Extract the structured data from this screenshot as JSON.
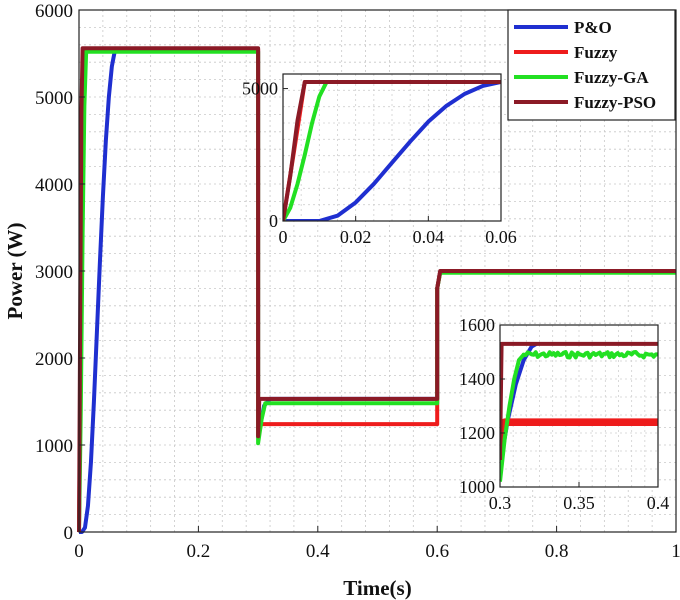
{
  "chart_data": {
    "type": "line",
    "xlabel": "Time(s)",
    "ylabel": "Power (W)",
    "xlim": [
      0,
      1
    ],
    "ylim": [
      0,
      6000
    ],
    "xticks": [
      0,
      0.2,
      0.4,
      0.6,
      0.8,
      1
    ],
    "xtick_labels": [
      "0",
      "0.2",
      "0.4",
      "0.6",
      "0.8",
      "1"
    ],
    "yticks": [
      0,
      1000,
      2000,
      3000,
      4000,
      5000,
      6000
    ],
    "ytick_labels": [
      "0",
      "1000",
      "2000",
      "3000",
      "4000",
      "5000",
      "6000"
    ],
    "grid": true,
    "legend_position": "top-right",
    "series": [
      {
        "name": "P&O",
        "color": "#1f2fd0",
        "points": [
          [
            0,
            0
          ],
          [
            0.005,
            0
          ],
          [
            0.01,
            50
          ],
          [
            0.015,
            300
          ],
          [
            0.02,
            800
          ],
          [
            0.025,
            1500
          ],
          [
            0.03,
            2300
          ],
          [
            0.035,
            3100
          ],
          [
            0.04,
            3850
          ],
          [
            0.045,
            4500
          ],
          [
            0.05,
            5000
          ],
          [
            0.055,
            5350
          ],
          [
            0.06,
            5530
          ],
          [
            0.3,
            5530
          ],
          [
            0.3,
            1100
          ],
          [
            0.31,
            1450
          ],
          [
            0.32,
            1530
          ],
          [
            0.6,
            1530
          ],
          [
            0.6,
            2800
          ],
          [
            0.605,
            2990
          ],
          [
            1,
            2990
          ]
        ]
      },
      {
        "name": "Fuzzy",
        "color": "#ee1c1c",
        "points": [
          [
            0,
            0
          ],
          [
            0.003,
            2200
          ],
          [
            0.006,
            4600
          ],
          [
            0.009,
            5550
          ],
          [
            0.3,
            5550
          ],
          [
            0.3,
            1100
          ],
          [
            0.305,
            1240
          ],
          [
            0.6,
            1240
          ],
          [
            0.6,
            2800
          ],
          [
            0.605,
            2990
          ],
          [
            1,
            2990
          ]
        ]
      },
      {
        "name": "Fuzzy-GA",
        "color": "#22e022",
        "points": [
          [
            0,
            0
          ],
          [
            0.003,
            1400
          ],
          [
            0.006,
            3400
          ],
          [
            0.009,
            4900
          ],
          [
            0.012,
            5520
          ],
          [
            0.3,
            5520
          ],
          [
            0.3,
            1020
          ],
          [
            0.306,
            1300
          ],
          [
            0.312,
            1480
          ],
          [
            0.6,
            1480
          ],
          [
            0.6,
            2800
          ],
          [
            0.605,
            2980
          ],
          [
            1,
            2980
          ]
        ]
      },
      {
        "name": "Fuzzy-PSO",
        "color": "#8b1a26",
        "points": [
          [
            0,
            0
          ],
          [
            0.002,
            2500
          ],
          [
            0.004,
            4800
          ],
          [
            0.006,
            5560
          ],
          [
            0.3,
            5560
          ],
          [
            0.3,
            1100
          ],
          [
            0.302,
            1530
          ],
          [
            0.6,
            1530
          ],
          [
            0.6,
            2800
          ],
          [
            0.605,
            3000
          ],
          [
            1,
            3000
          ]
        ]
      }
    ]
  },
  "inset_start": {
    "xlim": [
      0,
      0.06
    ],
    "ylim": [
      0,
      5550
    ],
    "xtick_labels": [
      "0",
      "0.02",
      "0.04",
      "0.06"
    ],
    "xticks": [
      0,
      0.02,
      0.04,
      0.06
    ],
    "ytick_labels": [
      "0",
      "5000"
    ],
    "yticks": [
      0,
      5000
    ],
    "series": [
      {
        "name": "P&O",
        "color": "#1f2fd0",
        "points": [
          [
            0,
            0
          ],
          [
            0.01,
            0
          ],
          [
            0.015,
            200
          ],
          [
            0.02,
            700
          ],
          [
            0.025,
            1400
          ],
          [
            0.03,
            2200
          ],
          [
            0.035,
            3000
          ],
          [
            0.04,
            3750
          ],
          [
            0.045,
            4350
          ],
          [
            0.05,
            4800
          ],
          [
            0.055,
            5100
          ],
          [
            0.06,
            5250
          ]
        ]
      },
      {
        "name": "Fuzzy",
        "color": "#ee1c1c",
        "points": [
          [
            0,
            0
          ],
          [
            0.003,
            2600
          ],
          [
            0.006,
            5250
          ],
          [
            0.06,
            5250
          ]
        ]
      },
      {
        "name": "Fuzzy-GA",
        "color": "#22e022",
        "points": [
          [
            0,
            0
          ],
          [
            0.002,
            500
          ],
          [
            0.004,
            1400
          ],
          [
            0.006,
            2500
          ],
          [
            0.008,
            3700
          ],
          [
            0.01,
            4700
          ],
          [
            0.012,
            5250
          ],
          [
            0.06,
            5250
          ]
        ]
      },
      {
        "name": "Fuzzy-PSO",
        "color": "#8b1a26",
        "points": [
          [
            0,
            0
          ],
          [
            0.002,
            1700
          ],
          [
            0.004,
            3800
          ],
          [
            0.006,
            5250
          ],
          [
            0.06,
            5250
          ]
        ]
      }
    ]
  },
  "inset_step": {
    "xlim": [
      0.3,
      0.4
    ],
    "ylim": [
      1000,
      1600
    ],
    "xtick_labels": [
      "0.3",
      "0.35",
      "0.4"
    ],
    "xticks": [
      0.3,
      0.35,
      0.4
    ],
    "ytick_labels": [
      "1000",
      "1200",
      "1400",
      "1600"
    ],
    "yticks": [
      1000,
      1200,
      1400,
      1600
    ],
    "series": [
      {
        "name": "P&O",
        "color": "#1f2fd0",
        "points": [
          [
            0.3,
            1080
          ],
          [
            0.305,
            1250
          ],
          [
            0.31,
            1380
          ],
          [
            0.315,
            1470
          ],
          [
            0.32,
            1520
          ],
          [
            0.323,
            1530
          ]
        ]
      },
      {
        "name": "Fuzzy",
        "color": "#ee1c1c",
        "points": [
          [
            0.3,
            1100
          ],
          [
            0.303,
            1240
          ],
          [
            0.4,
            1240
          ]
        ],
        "band": 28
      },
      {
        "name": "Fuzzy-GA",
        "color": "#22e022",
        "points": [
          [
            0.3,
            1020
          ],
          [
            0.303,
            1180
          ],
          [
            0.306,
            1300
          ],
          [
            0.309,
            1400
          ],
          [
            0.312,
            1470
          ],
          [
            0.315,
            1490
          ],
          [
            0.4,
            1490
          ]
        ],
        "noise": 22
      },
      {
        "name": "Fuzzy-PSO",
        "color": "#8b1a26",
        "points": [
          [
            0.3,
            1100
          ],
          [
            0.301,
            1530
          ],
          [
            0.4,
            1530
          ]
        ]
      }
    ]
  }
}
